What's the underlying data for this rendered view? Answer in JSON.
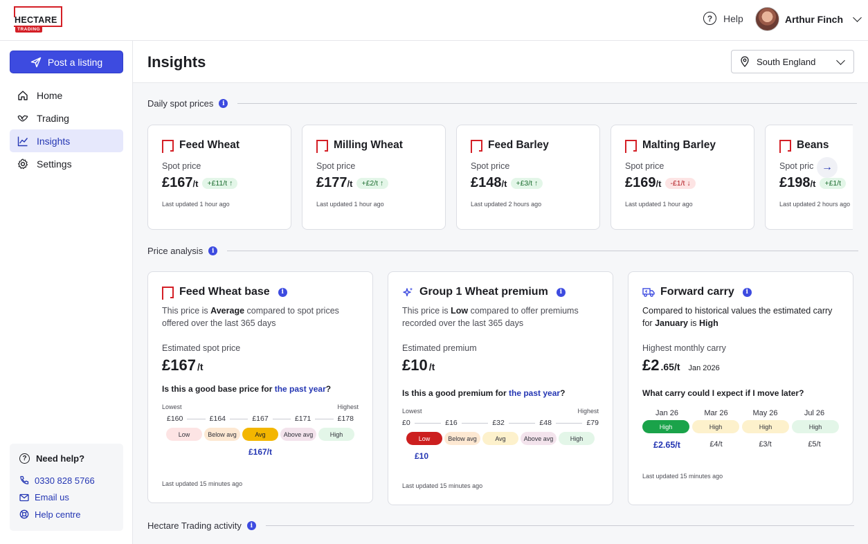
{
  "brand": {
    "name": "HECTARE",
    "tag": "TRADING"
  },
  "topbar": {
    "help_label": "Help",
    "user_name": "Arthur Finch"
  },
  "sidebar": {
    "post_label": "Post a listing",
    "items": [
      {
        "label": "Home",
        "icon": "home-icon"
      },
      {
        "label": "Trading",
        "icon": "handshake-icon"
      },
      {
        "label": "Insights",
        "icon": "chart-icon",
        "active": true
      },
      {
        "label": "Settings",
        "icon": "gear-icon"
      }
    ],
    "help": {
      "title": "Need help?",
      "phone": "0330 828 5766",
      "email": "Email us",
      "centre": "Help centre"
    }
  },
  "page": {
    "title": "Insights",
    "region": "South England"
  },
  "sections": {
    "spot": "Daily spot prices",
    "analysis": "Price analysis",
    "activity": "Hectare Trading activity"
  },
  "spot_cards": [
    {
      "name": "Feed Wheat",
      "label": "Spot price",
      "price": "£167",
      "unit": "/t",
      "change": "+£11/t ↑",
      "dir": "up",
      "updated": "Last updated 1 hour ago"
    },
    {
      "name": "Milling Wheat",
      "label": "Spot price",
      "price": "£177",
      "unit": "/t",
      "change": "+£2/t ↑",
      "dir": "up",
      "updated": "Last updated 1 hour ago"
    },
    {
      "name": "Feed Barley",
      "label": "Spot price",
      "price": "£148",
      "unit": "/t",
      "change": "+£3/t ↑",
      "dir": "up",
      "updated": "Last updated 2 hours ago"
    },
    {
      "name": "Malting Barley",
      "label": "Spot price",
      "price": "£169",
      "unit": "/t",
      "change": "-£1/t ↓",
      "dir": "down",
      "updated": "Last updated 1 hour ago"
    },
    {
      "name": "Beans",
      "label": "Spot pric",
      "price": "£198",
      "unit": "/t",
      "change": "+£1/t",
      "dir": "up",
      "updated": "Last updated 2 hours ago"
    }
  ],
  "analysis": {
    "base": {
      "title": "Feed Wheat base",
      "desc_pre": "This price is ",
      "desc_bold": "Average",
      "desc_post": " compared to spot prices offered over the last 365 days",
      "label": "Estimated spot price",
      "value": "£167",
      "unit": "/t",
      "q_pre": "Is this a good base price for ",
      "q_link": "the past year",
      "q_post": "?",
      "lowest": "Lowest",
      "highest": "Highest",
      "ticks": [
        "£160",
        "£164",
        "£167",
        "£171",
        "£178"
      ],
      "bands": [
        "Low",
        "Below avg",
        "Avg",
        "Above avg",
        "High"
      ],
      "selected": 2,
      "marker": "£167/t",
      "updated": "Last updated 15 minutes ago"
    },
    "premium": {
      "title": "Group 1 Wheat premium",
      "desc_pre": "This price is ",
      "desc_bold": "Low",
      "desc_post": " compared to offer premiums recorded over the last 365 days",
      "label": "Estimated premium",
      "value": "£10",
      "unit": "/t",
      "q_pre": "Is this a good premium for ",
      "q_link": "the past year",
      "q_post": "?",
      "lowest": "Lowest",
      "highest": "Highest",
      "ticks": [
        "£0",
        "£16",
        "£32",
        "£48",
        "£79"
      ],
      "bands": [
        "Low",
        "Below avg",
        "Avg",
        "Above avg",
        "High"
      ],
      "selected": 0,
      "marker": "£10",
      "updated": "Last updated 15 minutes ago"
    },
    "carry": {
      "title": "Forward carry",
      "desc_pre": "Compared to historical values the estimated carry for ",
      "desc_bold": "January",
      "desc_mid": " is ",
      "desc_bold2": "High",
      "label": "Highest monthly carry",
      "value_main": "£2",
      "value_dec": ".65/t",
      "value_date": "Jan 2026",
      "question": "What carry could I expect if I move later?",
      "months": [
        "Jan 26",
        "Mar 26",
        "May 26",
        "Jul 26"
      ],
      "levels": [
        "High",
        "High",
        "High",
        "High"
      ],
      "values": [
        "£2.65/t",
        "£4/t",
        "£3/t",
        "£5/t"
      ],
      "updated": "Last updated 15 minutes ago"
    }
  },
  "colors": {
    "accent": "#3d4be0",
    "brand": "#d41f26",
    "low": "#cc1f1f",
    "avg": "#f3b600",
    "high": "#1aa34a"
  }
}
